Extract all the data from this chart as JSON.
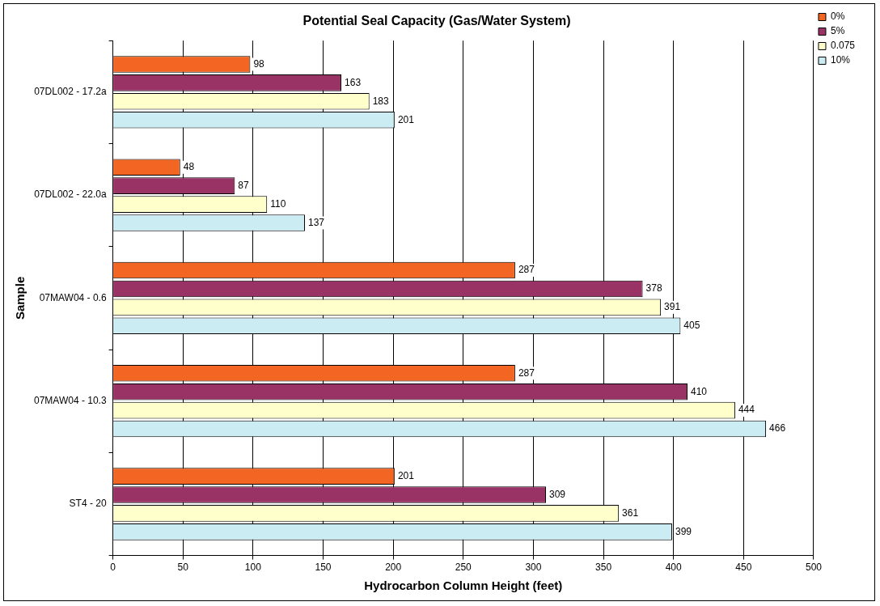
{
  "chart_data": {
    "type": "bar",
    "orientation": "horizontal",
    "title": "Potential Seal Capacity (Gas/Water System)",
    "xlabel": "Hydrocarbon Column Height (feet)",
    "ylabel": "Sample",
    "categories": [
      "07DL002 - 17.2a",
      "07DL002 - 22.0a",
      "07MAW04 - 0.6",
      "07MAW04 - 10.3",
      "ST4 - 20"
    ],
    "series": [
      {
        "name": "0%",
        "color": "#f26522",
        "values": [
          98,
          48,
          287,
          287,
          201
        ]
      },
      {
        "name": "5%",
        "color": "#993366",
        "values": [
          163,
          87,
          378,
          410,
          309
        ]
      },
      {
        "name": "0.075",
        "color": "#ffffcc",
        "values": [
          183,
          110,
          391,
          444,
          361
        ]
      },
      {
        "name": "10%",
        "color": "#ccecf4",
        "values": [
          201,
          137,
          405,
          466,
          399
        ]
      }
    ],
    "xlim": [
      0,
      500
    ],
    "xticks": [
      0,
      50,
      100,
      150,
      200,
      250,
      300,
      350,
      400,
      450,
      500
    ],
    "grid": "x",
    "legend": "top right",
    "data_labels": true
  }
}
